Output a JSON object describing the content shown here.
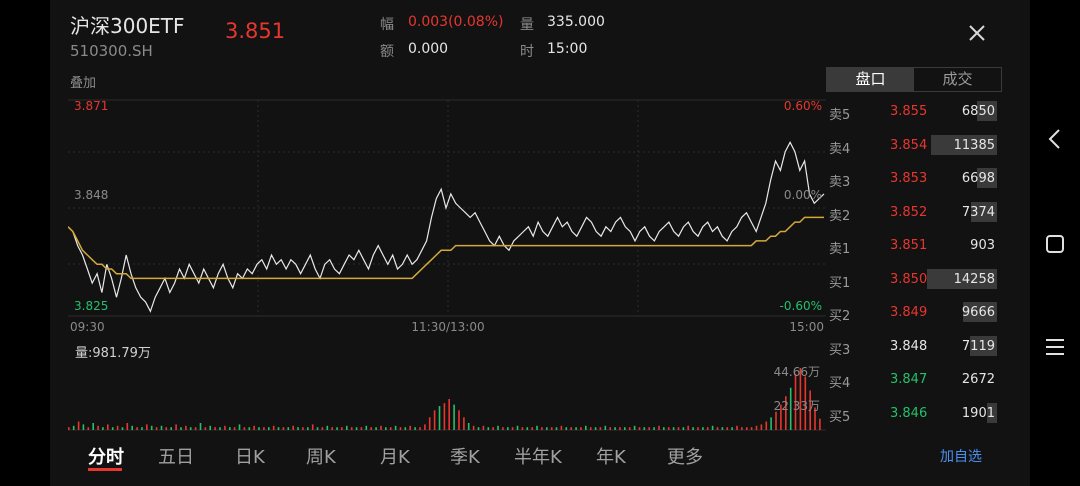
{
  "header": {
    "title": "沪深300ETF",
    "code": "510300.SH",
    "price": "3.851",
    "overlay_label": "叠加",
    "close_icon": "close-icon"
  },
  "quote": {
    "change_label": "幅",
    "change_value": "0.003(0.08%)",
    "volume_label": "量",
    "volume_value": "335.000",
    "amount_label": "额",
    "amount_value": "0.000",
    "time_label": "时",
    "time_value": "15:00"
  },
  "book_tabs": [
    "盘口",
    "成交"
  ],
  "order_book": [
    {
      "label": "卖5",
      "price": "3.855",
      "volume": "6850",
      "color": "red",
      "bar": 0.12
    },
    {
      "label": "卖4",
      "price": "3.854",
      "volume": "11385",
      "color": "red",
      "bar": 0.39
    },
    {
      "label": "卖3",
      "price": "3.853",
      "volume": "6698",
      "color": "red",
      "bar": 0.12
    },
    {
      "label": "卖2",
      "price": "3.852",
      "volume": "7374",
      "color": "red",
      "bar": 0.15
    },
    {
      "label": "卖1",
      "price": "3.851",
      "volume": "903",
      "color": "red",
      "bar": 0.0
    },
    {
      "label": "买1",
      "price": "3.850",
      "volume": "14258",
      "color": "red",
      "bar": 0.41
    },
    {
      "label": "买2",
      "price": "3.849",
      "volume": "9666",
      "color": "red",
      "bar": 0.2
    },
    {
      "label": "买3",
      "price": "3.848",
      "volume": "7119",
      "color": "white",
      "bar": 0.16
    },
    {
      "label": "买4",
      "price": "3.847",
      "volume": "2672",
      "color": "green",
      "bar": 0.0
    },
    {
      "label": "买5",
      "price": "3.846",
      "volume": "1901",
      "color": "green",
      "bar": 0.06
    }
  ],
  "chart_data": {
    "type": "line",
    "y_labels": {
      "top": "3.871",
      "mid": "3.848",
      "bottom": "3.825"
    },
    "pct_labels": {
      "top": "0.60%",
      "mid": "0.00%",
      "bottom": "-0.60%"
    },
    "x_labels": [
      "09:30",
      "11:30/13:00",
      "15:00"
    ],
    "ylim": [
      3.825,
      3.871
    ],
    "series": [
      {
        "values": [
          3.844,
          3.843,
          3.84,
          3.838,
          3.835,
          3.832,
          3.834,
          3.83,
          3.836,
          3.833,
          3.829,
          3.833,
          3.838,
          3.834,
          3.831,
          3.829,
          3.828,
          3.826,
          3.829,
          3.831,
          3.833,
          3.83,
          3.832,
          3.835,
          3.833,
          3.836,
          3.834,
          3.832,
          3.835,
          3.833,
          3.831,
          3.834,
          3.836,
          3.833,
          3.831,
          3.834,
          3.833,
          3.835,
          3.834,
          3.836,
          3.837,
          3.835,
          3.838,
          3.836,
          3.837,
          3.835,
          3.837,
          3.836,
          3.834,
          3.836,
          3.838,
          3.835,
          3.833,
          3.836,
          3.837,
          3.835,
          3.834,
          3.836,
          3.838,
          3.837,
          3.839,
          3.837,
          3.835,
          3.838,
          3.84,
          3.838,
          3.836,
          3.838,
          3.835,
          3.836,
          3.838,
          3.836,
          3.837,
          3.839,
          3.841,
          3.846,
          3.85,
          3.852,
          3.848,
          3.851,
          3.849,
          3.848,
          3.847,
          3.846,
          3.847,
          3.845,
          3.843,
          3.841,
          3.84,
          3.842,
          3.84,
          3.839,
          3.841,
          3.842,
          3.843,
          3.844,
          3.842,
          3.845,
          3.843,
          3.842,
          3.844,
          3.846,
          3.844,
          3.845,
          3.843,
          3.842,
          3.844,
          3.846,
          3.845,
          3.843,
          3.842,
          3.844,
          3.843,
          3.845,
          3.846,
          3.844,
          3.843,
          3.841,
          3.843,
          3.844,
          3.842,
          3.841,
          3.843,
          3.844,
          3.845,
          3.843,
          3.842,
          3.844,
          3.845,
          3.843,
          3.842,
          3.844,
          3.845,
          3.843,
          3.844,
          3.842,
          3.841,
          3.843,
          3.844,
          3.846,
          3.847,
          3.845,
          3.843,
          3.846,
          3.849,
          3.854,
          3.858,
          3.856,
          3.86,
          3.862,
          3.86,
          3.856,
          3.858,
          3.851,
          3.849,
          3.85,
          3.851
        ]
      },
      {
        "values": [
          3.844,
          3.843,
          3.841,
          3.839,
          3.838,
          3.837,
          3.836,
          3.836,
          3.835,
          3.835,
          3.834,
          3.834,
          3.834,
          3.833,
          3.833,
          3.833,
          3.833,
          3.833,
          3.833,
          3.833,
          3.833,
          3.833,
          3.833,
          3.833,
          3.833,
          3.833,
          3.833,
          3.833,
          3.833,
          3.833,
          3.833,
          3.833,
          3.833,
          3.833,
          3.833,
          3.833,
          3.833,
          3.833,
          3.833,
          3.833,
          3.833,
          3.833,
          3.833,
          3.833,
          3.833,
          3.833,
          3.833,
          3.833,
          3.833,
          3.833,
          3.833,
          3.833,
          3.833,
          3.833,
          3.833,
          3.833,
          3.833,
          3.833,
          3.833,
          3.833,
          3.833,
          3.833,
          3.833,
          3.833,
          3.833,
          3.833,
          3.833,
          3.833,
          3.833,
          3.833,
          3.833,
          3.833,
          3.834,
          3.835,
          3.836,
          3.837,
          3.838,
          3.839,
          3.839,
          3.839,
          3.84,
          3.84,
          3.84,
          3.84,
          3.84,
          3.84,
          3.84,
          3.84,
          3.84,
          3.84,
          3.84,
          3.84,
          3.84,
          3.84,
          3.84,
          3.84,
          3.84,
          3.84,
          3.84,
          3.84,
          3.84,
          3.84,
          3.84,
          3.84,
          3.84,
          3.84,
          3.84,
          3.84,
          3.84,
          3.84,
          3.84,
          3.84,
          3.84,
          3.84,
          3.84,
          3.84,
          3.84,
          3.84,
          3.84,
          3.84,
          3.84,
          3.84,
          3.84,
          3.84,
          3.84,
          3.84,
          3.84,
          3.84,
          3.84,
          3.84,
          3.84,
          3.84,
          3.84,
          3.84,
          3.84,
          3.84,
          3.84,
          3.84,
          3.84,
          3.84,
          3.84,
          3.84,
          3.841,
          3.841,
          3.841,
          3.842,
          3.842,
          3.843,
          3.843,
          3.844,
          3.845,
          3.845,
          3.846,
          3.846,
          3.846,
          3.846,
          3.846
        ]
      }
    ],
    "line_colors": [
      "#e8e8e8",
      "#d4a93a"
    ]
  },
  "volume_chart": {
    "label": "量:981.79万",
    "max_label": "44.66万",
    "mid_label": "22.33万",
    "bars": [
      2,
      3,
      6,
      4,
      2,
      5,
      3,
      2,
      4,
      2,
      3,
      2,
      5,
      3,
      2,
      2,
      4,
      3,
      2,
      3,
      2,
      2,
      4,
      2,
      3,
      2,
      2,
      5,
      2,
      3,
      2,
      2,
      3,
      2,
      2,
      4,
      2,
      2,
      3,
      2,
      2,
      2,
      3,
      2,
      2,
      2,
      3,
      2,
      2,
      2,
      4,
      2,
      2,
      3,
      2,
      2,
      2,
      3,
      2,
      2,
      2,
      3,
      2,
      2,
      3,
      2,
      2,
      3,
      2,
      2,
      3,
      2,
      2,
      4,
      9,
      14,
      17,
      19,
      22,
      18,
      14,
      9,
      5,
      3,
      2,
      3,
      2,
      2,
      3,
      2,
      2,
      2,
      3,
      2,
      2,
      2,
      3,
      2,
      2,
      2,
      2,
      3,
      2,
      2,
      2,
      2,
      3,
      2,
      2,
      2,
      3,
      2,
      2,
      2,
      2,
      2,
      3,
      2,
      2,
      2,
      2,
      3,
      2,
      2,
      2,
      2,
      2,
      3,
      2,
      2,
      2,
      2,
      3,
      2,
      2,
      2,
      2,
      3,
      2,
      2,
      2,
      3,
      4,
      6,
      9,
      13,
      18,
      24,
      30,
      40,
      44,
      38,
      28,
      16,
      8
    ],
    "colors": [
      "red",
      "green",
      "red",
      "green",
      "red",
      "green",
      "red",
      "green",
      "red",
      "green",
      "red",
      "green",
      "red",
      "green",
      "red",
      "green",
      "red",
      "green",
      "red",
      "green",
      "red",
      "green",
      "red",
      "green",
      "red",
      "green",
      "red",
      "green",
      "red",
      "green",
      "red",
      "green",
      "red",
      "green",
      "red",
      "green",
      "red",
      "green",
      "red",
      "green",
      "red",
      "green",
      "red",
      "green",
      "red",
      "green",
      "red",
      "green",
      "red",
      "green",
      "red",
      "green",
      "red",
      "green",
      "red",
      "green",
      "red",
      "green",
      "red",
      "green",
      "red",
      "green",
      "red",
      "green",
      "red",
      "green",
      "red",
      "green",
      "red",
      "green",
      "red",
      "green",
      "red",
      "red",
      "red",
      "red",
      "green",
      "red",
      "red",
      "green",
      "red",
      "red",
      "green",
      "red",
      "green",
      "red",
      "green",
      "red",
      "green",
      "red",
      "green",
      "red",
      "green",
      "red",
      "green",
      "red",
      "green",
      "red",
      "green",
      "red",
      "green",
      "red",
      "green",
      "red",
      "green",
      "red",
      "green",
      "red",
      "green",
      "red",
      "green",
      "red",
      "green",
      "red",
      "green",
      "red",
      "green",
      "red",
      "green",
      "red",
      "green",
      "red",
      "green",
      "red",
      "green",
      "red",
      "green",
      "red",
      "green",
      "red",
      "green",
      "red",
      "green",
      "red",
      "green",
      "red",
      "green",
      "red",
      "red",
      "red",
      "red",
      "red",
      "red",
      "red",
      "green",
      "red",
      "red",
      "red",
      "green",
      "red",
      "red"
    ]
  },
  "periods": [
    "分时",
    "五日",
    "日K",
    "周K",
    "月K",
    "季K",
    "半年K",
    "年K",
    "更多"
  ],
  "add_watchlist": "加自选",
  "colors": {
    "up": "#e8362f",
    "down": "#24c06a",
    "avg_line": "#d4a93a",
    "price_line": "#e8e8e8"
  }
}
